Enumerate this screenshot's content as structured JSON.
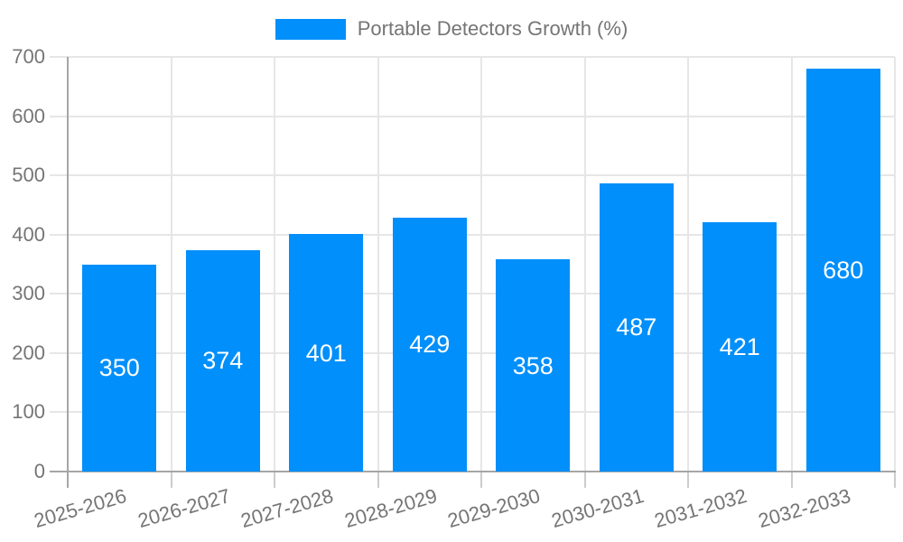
{
  "chart_data": {
    "type": "bar",
    "title": "Portable Detectors Growth (%)",
    "legend": [
      "Portable Detectors Growth (%)"
    ],
    "legend_position": "top-center",
    "categories": [
      "2025-2026",
      "2026-2027",
      "2027-2028",
      "2028-2029",
      "2029-2030",
      "2030-2031",
      "2031-2032",
      "2032-2033"
    ],
    "values": [
      350,
      374,
      401,
      429,
      358,
      487,
      421,
      680
    ],
    "value_labels": [
      "350",
      "374",
      "401",
      "429",
      "358",
      "487",
      "421",
      "680"
    ],
    "xlabel": "",
    "ylabel": "",
    "ylim": [
      0,
      700
    ],
    "yticks": [
      0,
      100,
      200,
      300,
      400,
      500,
      600,
      700
    ],
    "grid": true,
    "x_label_rotation_deg": -16,
    "colors": {
      "bar": "#008FFB",
      "value_label": "#ffffff",
      "axis_text": "#757575",
      "grid_line": "#e6e6e6",
      "axis_line": "#a6a6a6",
      "tick_line": "#cccccc",
      "background": "#ffffff"
    }
  }
}
